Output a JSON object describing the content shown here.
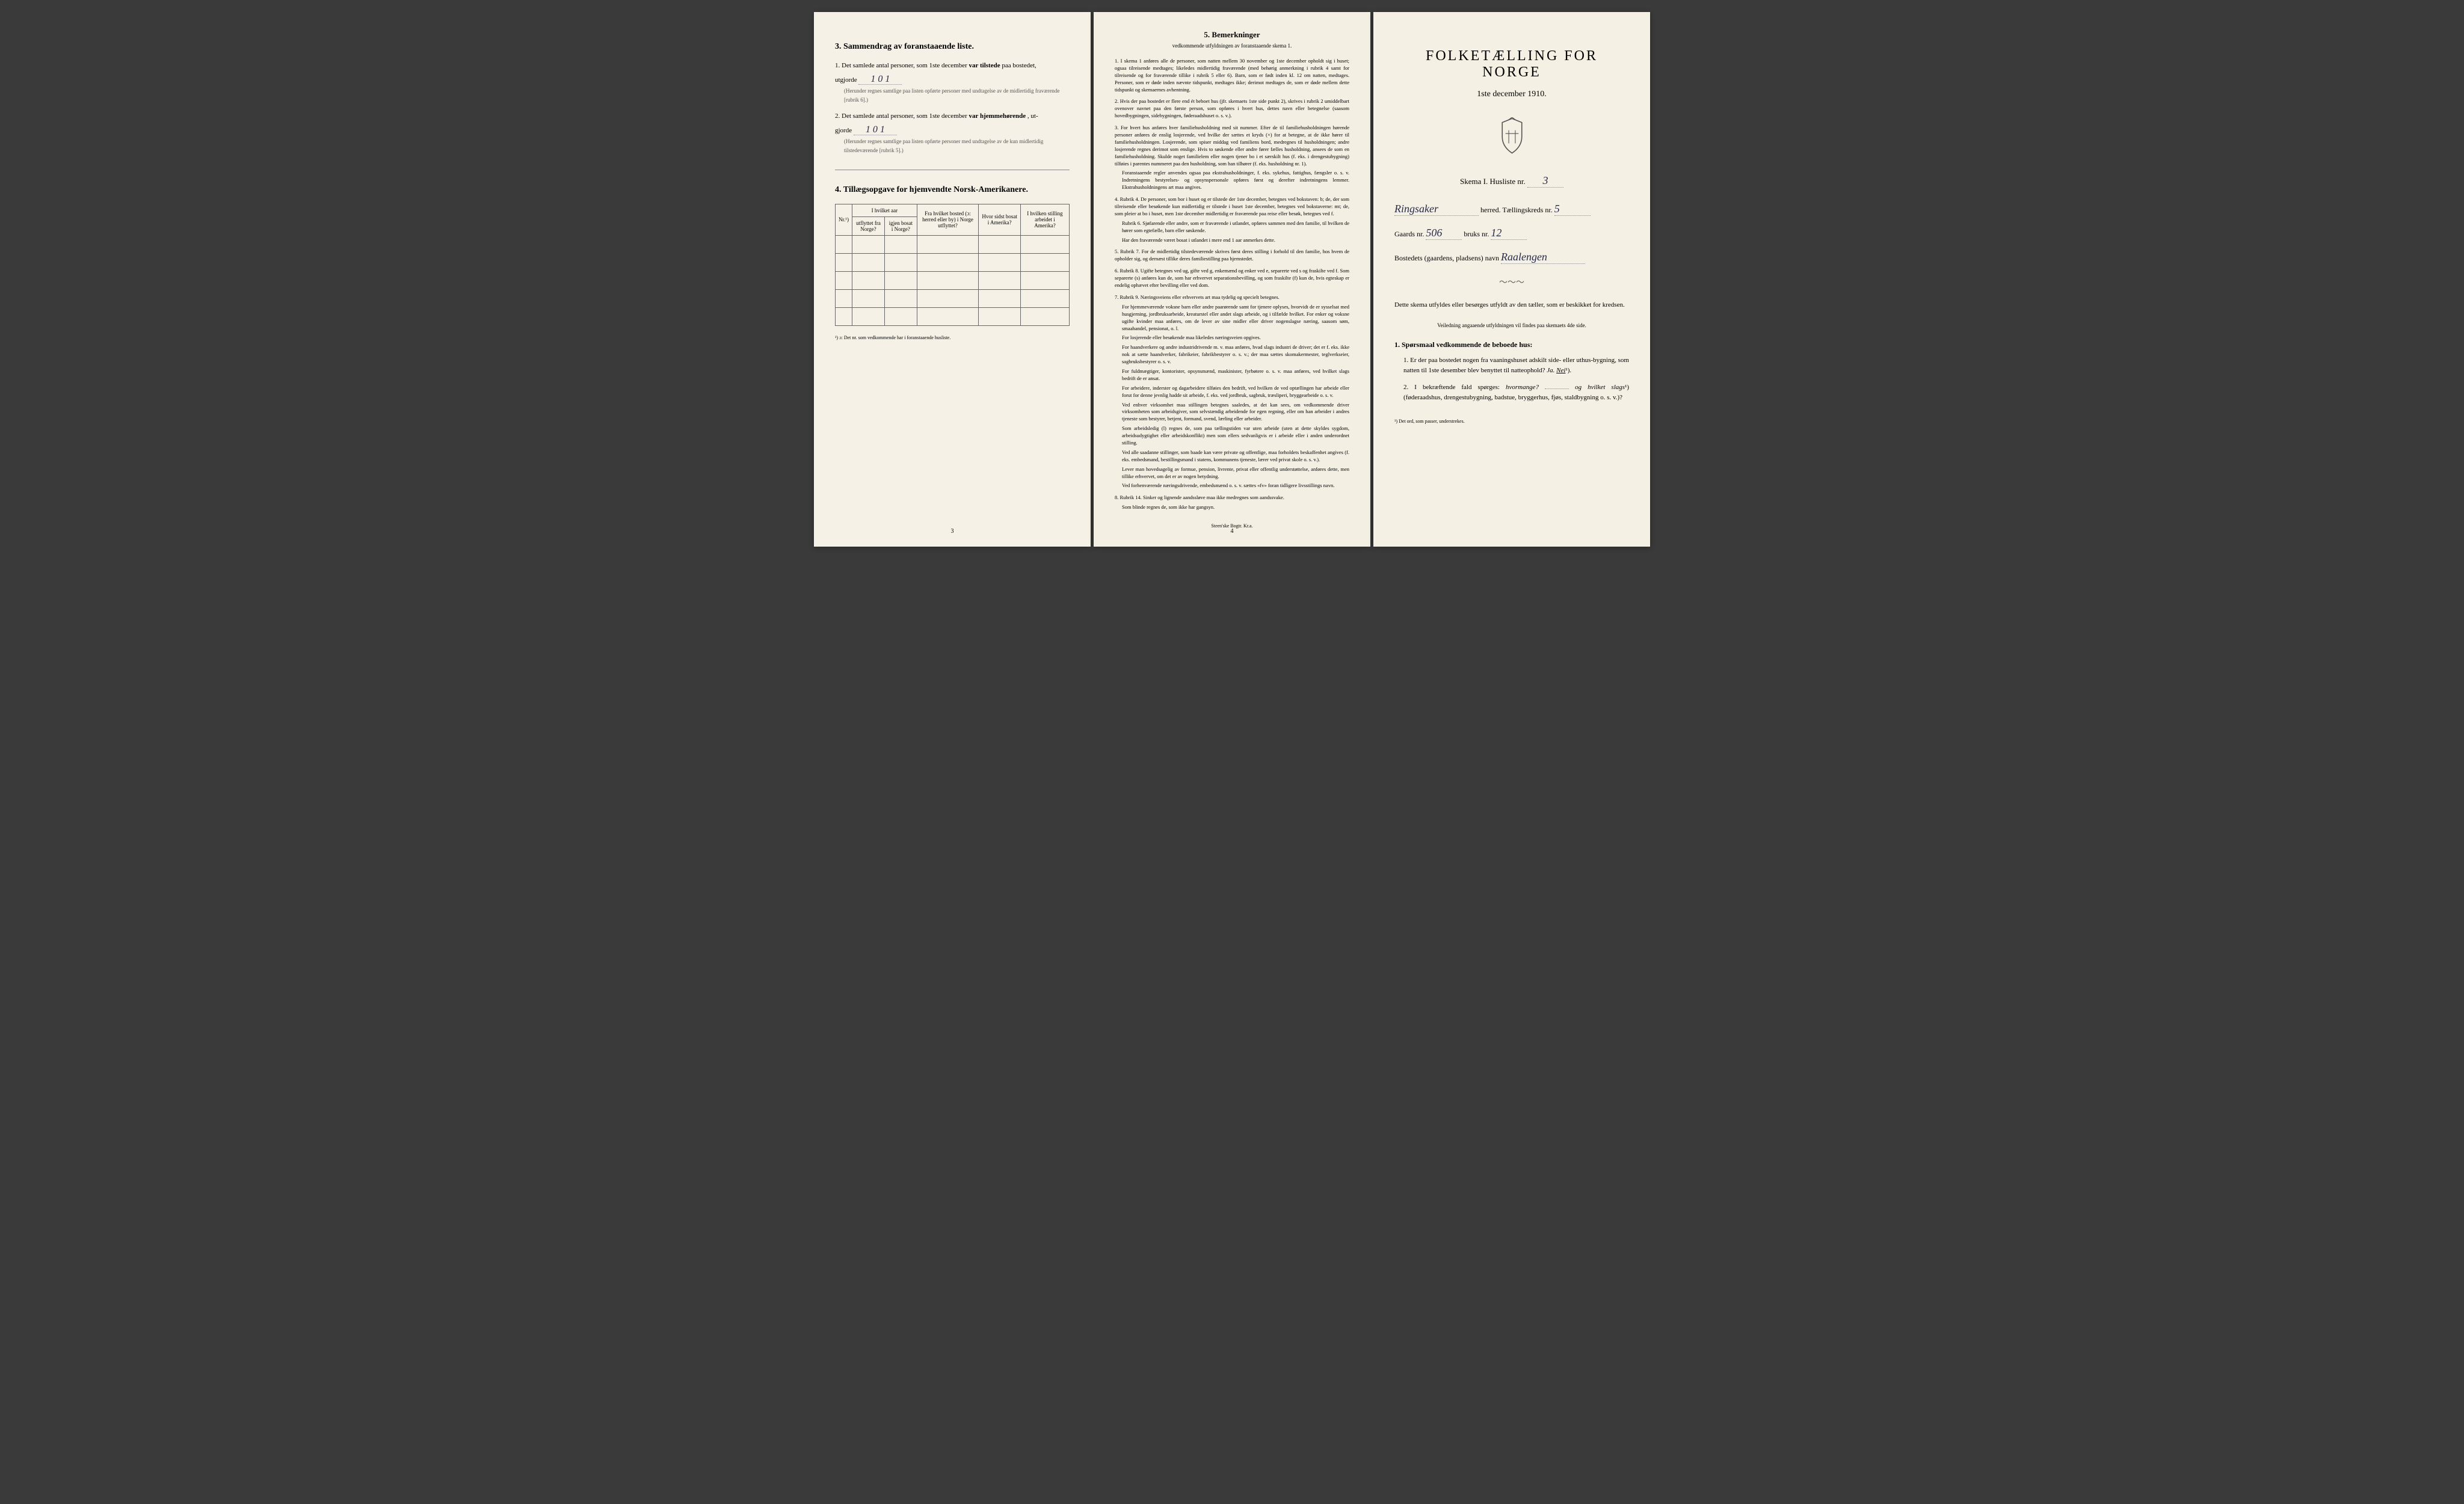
{
  "page1": {
    "section3": {
      "title": "3.   Sammendrag av foranstaaende liste.",
      "item1_prefix": "1.  Det samlede antal personer, som 1ste december",
      "item1_bold": "var tilstede",
      "item1_suffix": "paa bostedet,",
      "item1_line2": "utgjorde",
      "item1_value": "1   0   1",
      "item1_note": "(Herunder regnes samtlige paa listen opførte personer med undtagelse av de midlertidig fraværende [rubrik 6].)",
      "item2_prefix": "2.  Det samlede antal personer, som 1ste december",
      "item2_bold": "var hjemmehørende",
      "item2_suffix": ", ut-",
      "item2_line2": "gjorde",
      "item2_value": "1   0   1",
      "item2_note": "(Herunder regnes samtlige paa listen opførte personer med undtagelse av de kun midlertidig tilstedeværende [rubrik 5].)"
    },
    "section4": {
      "title": "4.  Tillægsopgave for hjemvendte Norsk-Amerikanere.",
      "headers": {
        "col1": "Nr.¹)",
        "col2a": "I hvilket aar",
        "col2b": "utflyttet fra Norge?",
        "col2c": "igjen bosat i Norge?",
        "col3": "Fra hvilket bosted (ɔ: herred eller by) i Norge utflyttet?",
        "col4": "Hvor sidst bosat i Amerika?",
        "col5": "I hvilken stilling arbeidet i Amerika?"
      },
      "note": "¹) ɔ: Det nr. som vedkommende har i foranstaaende husliste.",
      "pageNum": "3"
    }
  },
  "page2": {
    "title": "5.   Bemerkninger",
    "subtitle": "vedkommende utfyldningen av foranstaaende skema 1.",
    "items": [
      {
        "num": "1.",
        "text": "I skema 1 anføres alle de personer, som natten mellem 30 november og 1ste december opholdt sig i huset; ogsaa tilreisende medtages; likeledes midlertidig fraværende (med behørig anmerkning i rubrik 4 samt for tilreisende og for fraværende tillike i rubrik 5 eller 6). Barn, som er født inden kl. 12 om natten, medtages. Personer, som er døde inden nævnte tidspunkt, medtages ikke; derimot medtages de, som er døde mellem dette tidspunkt og skemaernes avhentning."
      },
      {
        "num": "2.",
        "text": "Hvis der paa bostedet er flere end ét beboet hus (jfr. skemaets 1ste side punkt 2), skrives i rubrik 2 umiddelbart ovenover navnet paa den første person, som opføres i hvert hus, dettes navn eller betegnelse (saasom hovedbygningen, sidebygningen, føderaadshuset o. s. v.)."
      },
      {
        "num": "3.",
        "text": "For hvert hus anføres hver familiehusholdning med sit nummer. Efter de til familiehusholdningen hørende personer anføres de enslig losjerende, ved hvilke der sættes et kryds (×) for at betegne, at de ikke hører til familiehusholdningen. Losjerende, som spiser middag ved familiens bord, medregnes til husholdningen; andre losjerende regnes derimot som enslige. Hvis to søskende eller andre fører fælles husholdning, ansees de som en familiehusholdning. Skulde noget familielem eller nogen tjener bo i et særskilt hus (f. eks. i drengestubygning) tilføies i parentes nummeret paa den husholdning, som han tilhører (f. eks. husholdning nr. 1).",
        "sub": "Foranstaaende regler anvendes ogsaa paa ekstrahusholdninger, f. eks. sykehus, fattighus, fængsler o. s. v. Indretningens bestyrelses- og opsynspersonale opføres først og derefter indretningens lemmer. Ekstrahusholdningens art maa angives."
      },
      {
        "num": "4.",
        "text": "Rubrik 4. De personer, som bor i huset og er tilstede der 1ste december, betegnes ved bokstaven: b; de, der som tilreisende eller besøkende kun midlertidig er tilstede i huset 1ste december, betegnes ved bokstaverne: mt; de, som pleier at bo i huset, men 1ste december midlertidig er fraværende paa reise eller besøk, betegnes ved f.",
        "sub": "Rubrik 6. Sjøfarende eller andre, som er fraværende i utlandet, opføres sammen med den familie, til hvilken de hører som egtefælle, barn eller søskende.",
        "sub2": "Har den fraværende været bosat i utlandet i mere end 1 aar anmerkes dette."
      },
      {
        "num": "5.",
        "text": "Rubrik 7. For de midlertidig tilstedeværende skrives først deres stilling i forhold til den familie, hos hvem de opholder sig, og dernæst tillike deres familiestilling paa hjemstedet."
      },
      {
        "num": "6.",
        "text": "Rubrik 8. Ugifte betegnes ved ug, gifte ved g, enkemænd og enker ved e, separerte ved s og fraskilte ved f. Som separerte (s) anføres kun de, som har erhvervet separationsbevilling, og som fraskilte (f) kun de, hvis egteskap er endelig ophævet efter bevilling eller ved dom."
      },
      {
        "num": "7.",
        "text": "Rubrik 9. Næringsveiens eller erhvervets art maa tydelig og specielt betegnes.",
        "sub": "For hjemmeværende voksne barn eller andre paarørende samt for tjenere oplyses, hvorvidt de er sysselsat med husgjerning, jordbruksarbeide, kreaturstel eller andet slags arbeide, og i tilfælde hvilket. For enker og voksne ugifte kvinder maa anføres, om de lever av sine midler eller driver nogenslagse næring, saasom søm, smaahandel, pensionat, o. l.",
        "sub2": "For losjerende eller besøkende maa likeledes næringsveien opgives.",
        "sub3": "For haandverkere og andre industridrivende m. v. maa anføres, hvad slags industri de driver; det er f. eks. ikke nok at sætte haandverker, fabrikeier, fabrikbestyrer o. s. v.; der maa sættes skomakermester, teglverkseier, sagbruksbestyrer o. s. v.",
        "sub4": "For fuldmægtiger, kontorister, opsynsmænd, maskinister, fyrbøtere o. s. v. maa anføres, ved hvilket slags bedrift de er ansat.",
        "sub5": "For arbeidere, inderster og dagarbeidere tilføies den bedrift, ved hvilken de ved optællingen har arbeide eller forut for denne jevnlig hadde sit arbeide, f. eks. ved jordbruk, sagbruk, træsliperi, bryggearbeide o. s. v.",
        "sub6": "Ved enhver virksomhet maa stillingen betegnes saaledes, at det kan sees, om vedkommende driver virksomheten som arbeidsgiver, som selvstændig arbeidende for egen regning, eller om han arbeider i andres tjeneste som bestyrer, betjent, formand, svend, lærling eller arbeider.",
        "sub7": "Som arbeidsledig (l) regnes de, som paa tællingstiden var uten arbeide (uten at dette skyldes sygdom, arbeidsudygtighet eller arbeidskonflikt) men som ellers sedvanligvis er i arbeide eller i anden underordnet stilling.",
        "sub8": "Ved alle saadanne stillinger, som baade kan være private og offentlige, maa forholdets beskaffenhet angives (f. eks. embedsmand, bestillingsmand i statens, kommunens tjeneste, lærer ved privat skole o. s. v.).",
        "sub9": "Lever man hovedsagelig av formue, pension, livrente, privat eller offentlig understøttelse, anføres dette, men tillike erhvervet, om det er av nogen betydning.",
        "sub10": "Ved forhenværende næringsdrivende, embedsmænd o. s. v. sættes «fv» foran tidligere livsstillings navn."
      },
      {
        "num": "8.",
        "text": "Rubrik 14. Sinker og lignende aandssløve maa ikke medregnes som aandssvake.",
        "sub": "Som blinde regnes de, som ikke har gangsyn."
      }
    ],
    "pageNum": "4",
    "printer": "Steen'ske Bogtr.  Kr.a."
  },
  "page3": {
    "mainTitle": "FOLKETÆLLING FOR NORGE",
    "date": "1ste december 1910.",
    "skemaLabel": "Skema I.  Husliste nr.",
    "skemaValue": "3",
    "herredValue": "Ringsaker",
    "herredLabel": "herred.  Tællingskreds nr.",
    "kredsValue": "5",
    "gaardsLabel": "Gaards nr.",
    "gaardsValue": "506",
    "bruksLabel": "bruks nr.",
    "bruksValue": "12",
    "bostedLabel": "Bostedets (gaardens, pladsens) navn",
    "bostedValue": "Raalengen",
    "instruction": "Dette skema utfyldes eller besørges utfyldt av den tæller, som er beskikket for kredsen.",
    "instructionSmall": "Veiledning angaaende utfyldningen vil findes paa skemaets 4de side.",
    "q1Header": "1. Spørsmaal vedkommende de beboede hus:",
    "q1": {
      "num": "1.",
      "text": "Er der paa bostedet nogen fra vaaningshuset adskilt side- eller uthus-bygning, som natten til 1ste desember blev benyttet til natteophold?",
      "ja": "Ja.",
      "nei": "Nei",
      "sup": "¹)."
    },
    "q2": {
      "num": "2.",
      "text": "I bekræftende fald spørges:",
      "italic1": "hvormange?",
      "mid": "og",
      "italic2": "hvilket slags",
      "sup": "¹)",
      "text2": "(føderaadshus, drengestubygning, badstue, bryggerhus, fjøs, staldbygning o. s. v.)?"
    },
    "footnote": "¹) Det ord, som passer, understrekes."
  }
}
